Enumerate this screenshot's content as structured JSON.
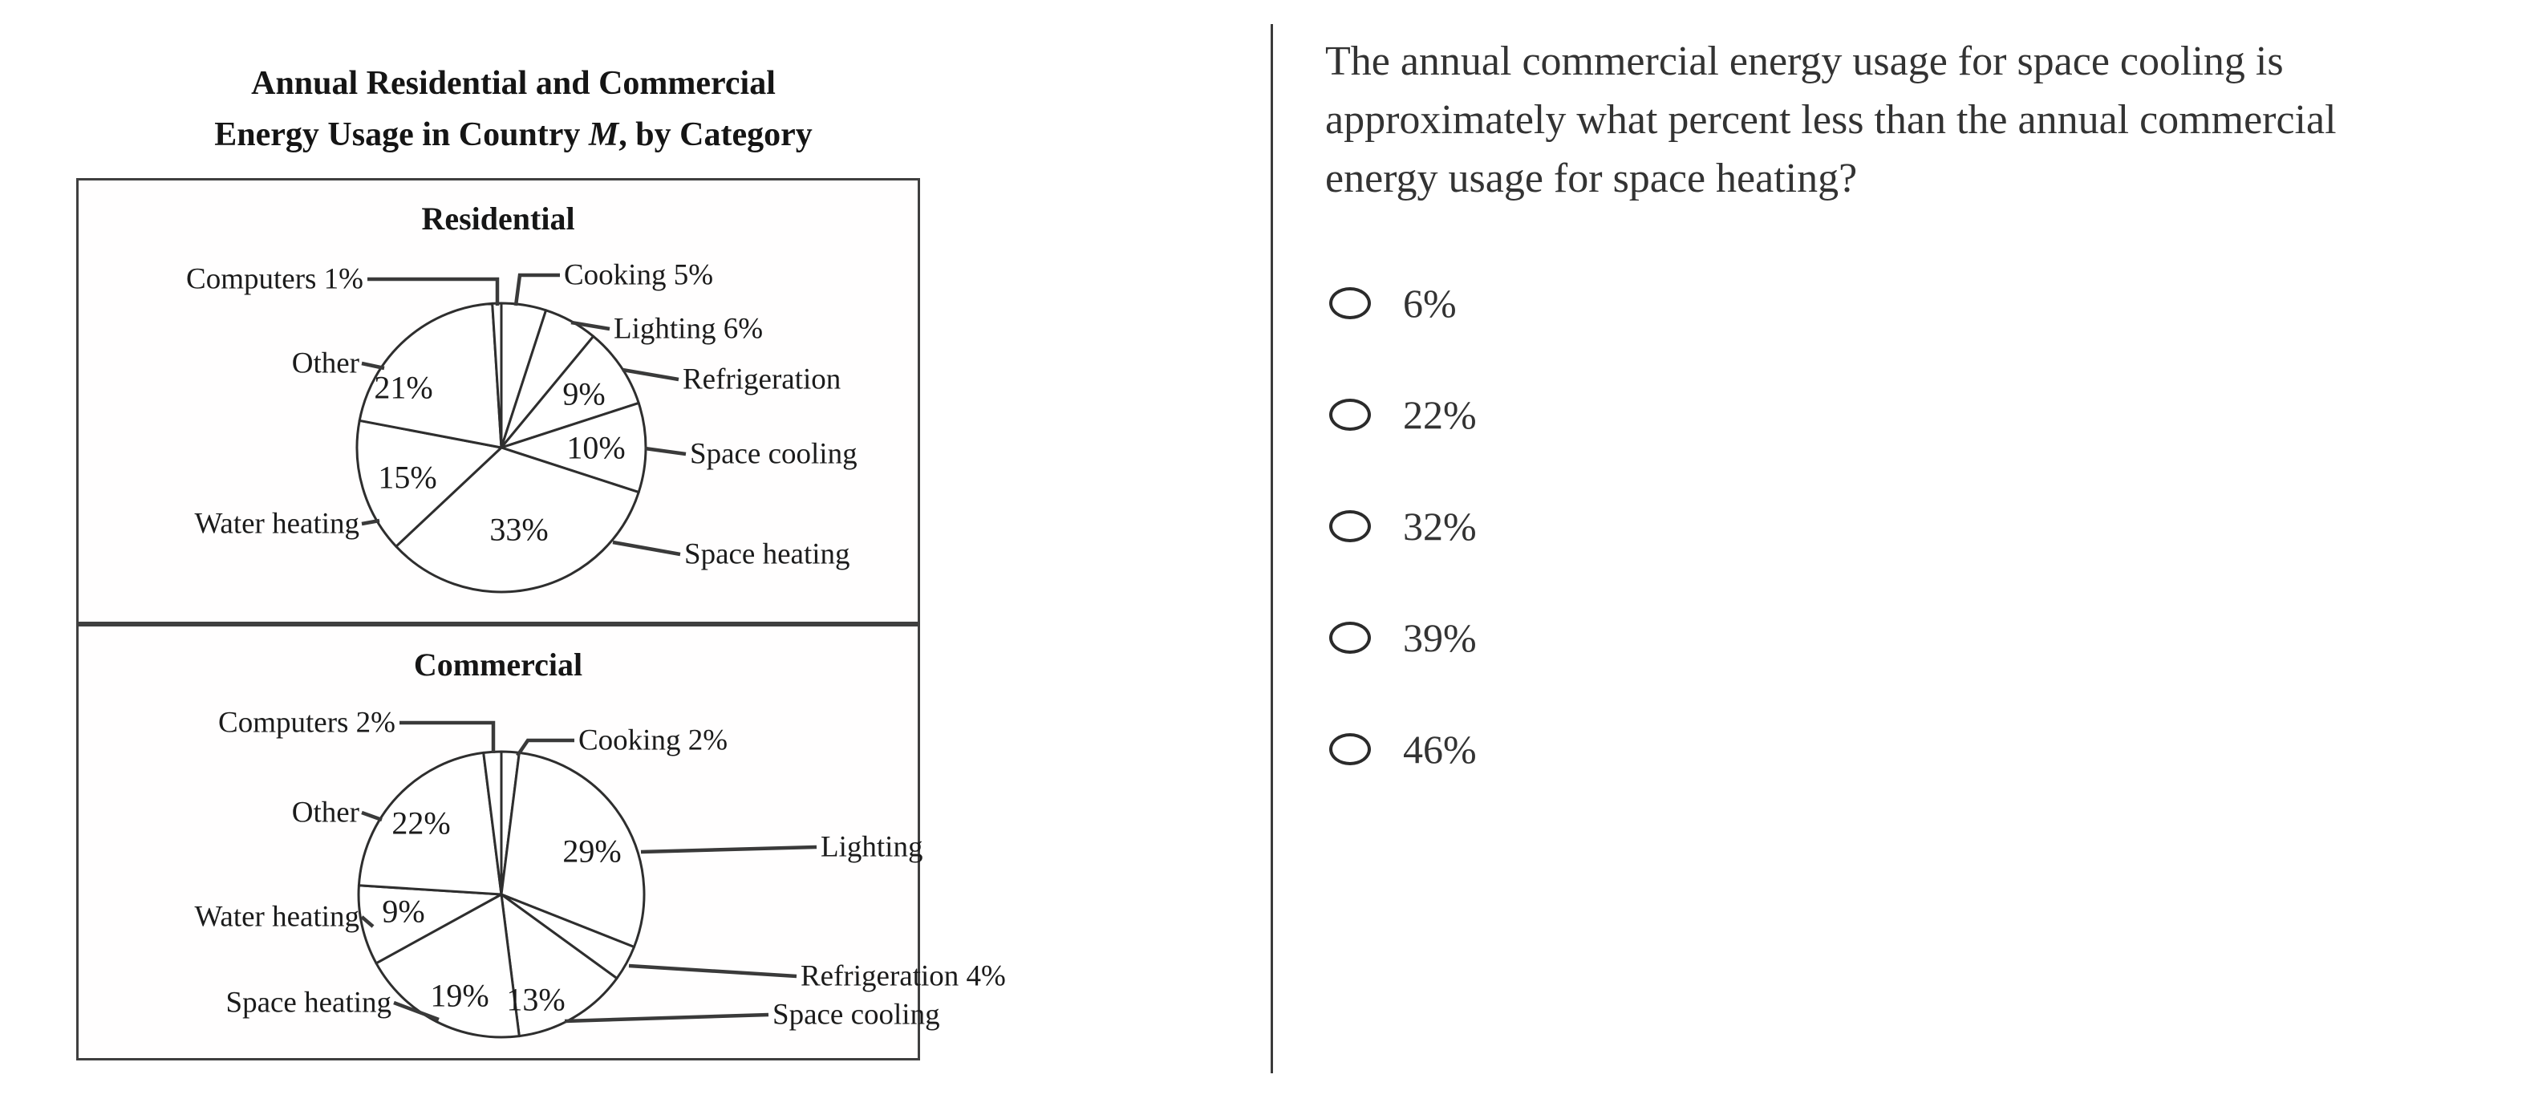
{
  "colors": {
    "ink": "#2e2e2e",
    "text_gray": "#333333",
    "background": "#ffffff"
  },
  "figure": {
    "title_line1": "Annual Residential and Commercial",
    "title_line2_prefix": "Energy Usage in Country ",
    "title_country": "M",
    "title_line2_suffix": ", by Category"
  },
  "chart_data": [
    {
      "type": "pie",
      "title": "Residential",
      "unit": "percent of annual residential energy usage",
      "start_angle_deg": 0,
      "direction": "clockwise",
      "slices": [
        {
          "label": "Cooking",
          "value": 5,
          "outside_label": "Cooking 5%",
          "inside_label": ""
        },
        {
          "label": "Lighting",
          "value": 6,
          "outside_label": "Lighting 6%",
          "inside_label": ""
        },
        {
          "label": "Refrigeration",
          "value": 9,
          "outside_label": "Refrigeration",
          "inside_label": "9%"
        },
        {
          "label": "Space cooling",
          "value": 10,
          "outside_label": "Space cooling",
          "inside_label": "10%"
        },
        {
          "label": "Space heating",
          "value": 33,
          "outside_label": "Space heating",
          "inside_label": "33%"
        },
        {
          "label": "Water heating",
          "value": 15,
          "outside_label": "Water heating",
          "inside_label": "15%"
        },
        {
          "label": "Other",
          "value": 21,
          "outside_label": "Other",
          "inside_label": "21%"
        },
        {
          "label": "Computers",
          "value": 1,
          "outside_label": "Computers 1%",
          "inside_label": ""
        }
      ]
    },
    {
      "type": "pie",
      "title": "Commercial",
      "unit": "percent of annual commercial energy usage",
      "start_angle_deg": 0,
      "direction": "clockwise",
      "slices": [
        {
          "label": "Cooking",
          "value": 2,
          "outside_label": "Cooking 2%",
          "inside_label": ""
        },
        {
          "label": "Lighting",
          "value": 29,
          "outside_label": "Lighting",
          "inside_label": "29%"
        },
        {
          "label": "Refrigeration",
          "value": 4,
          "outside_label": "Refrigeration 4%",
          "inside_label": ""
        },
        {
          "label": "Space cooling",
          "value": 13,
          "outside_label": "Space cooling",
          "inside_label": "13%"
        },
        {
          "label": "Space heating",
          "value": 19,
          "outside_label": "Space heating",
          "inside_label": "19%"
        },
        {
          "label": "Water heating",
          "value": 9,
          "outside_label": "Water heating",
          "inside_label": "9%"
        },
        {
          "label": "Other",
          "value": 22,
          "outside_label": "Other",
          "inside_label": "22%"
        },
        {
          "label": "Computers",
          "value": 2,
          "outside_label": "Computers 2%",
          "inside_label": ""
        }
      ]
    }
  ],
  "question": {
    "lines": [
      "The annual commercial energy usage for space cooling is",
      "approximately what percent less than the annual commercial",
      "energy usage for space heating?"
    ],
    "options": [
      {
        "label": "6%",
        "selected": false
      },
      {
        "label": "22%",
        "selected": false
      },
      {
        "label": "32%",
        "selected": false
      },
      {
        "label": "39%",
        "selected": false
      },
      {
        "label": "46%",
        "selected": false
      }
    ]
  }
}
